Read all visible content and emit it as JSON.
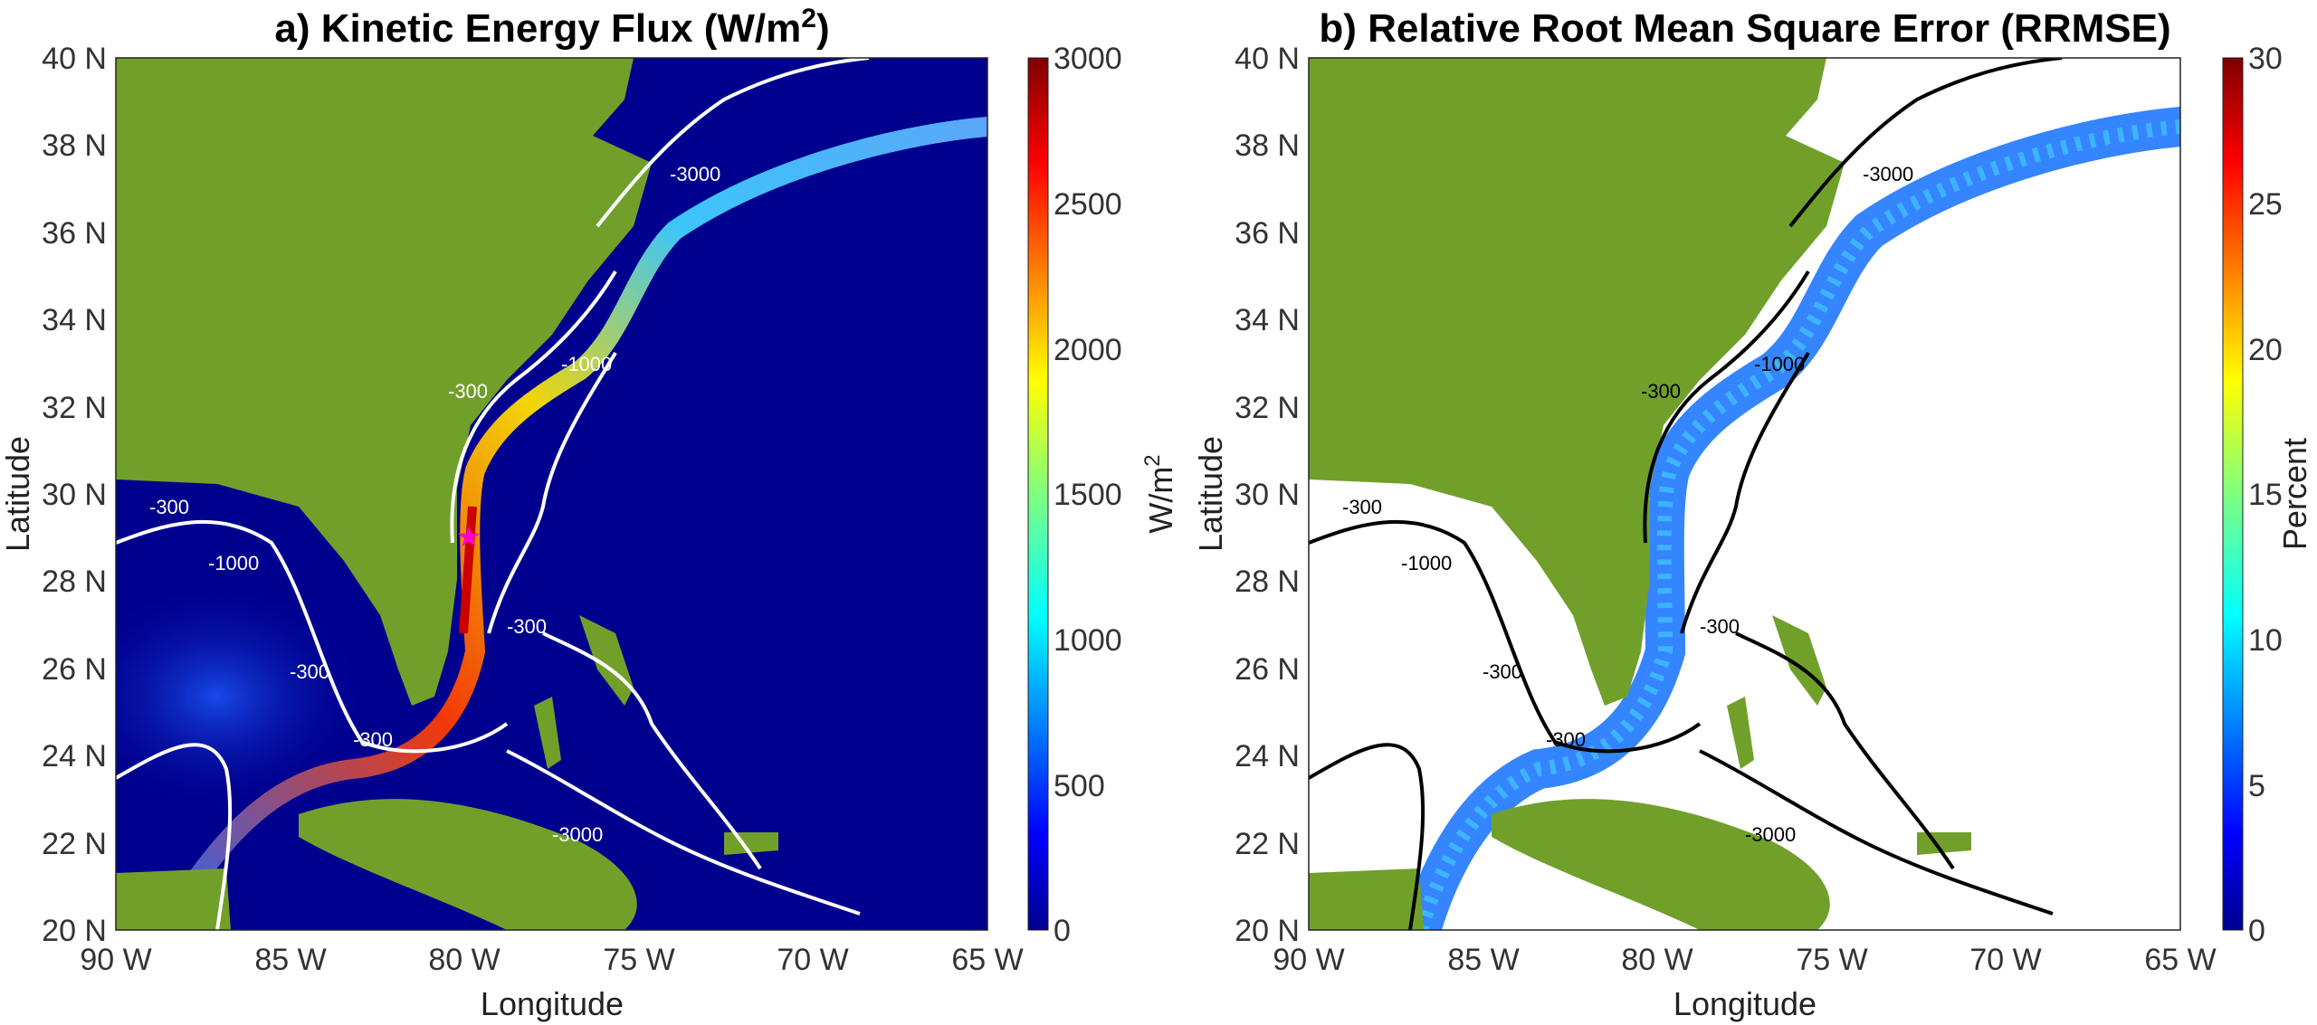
{
  "chart_data": [
    {
      "type": "heatmap",
      "title": "a) Kinetic Energy Flux (W/m",
      "title_superscript": "2",
      "title_suffix": ")",
      "xlabel": "Longitude",
      "ylabel": "Latitude",
      "xlim": [
        -90,
        -65
      ],
      "ylim": [
        20,
        40
      ],
      "x_ticks": [
        "90 W",
        "85 W",
        "80 W",
        "75 W",
        "70 W",
        "65 W"
      ],
      "y_ticks": [
        "20 N",
        "22 N",
        "24 N",
        "26 N",
        "28 N",
        "30 N",
        "32 N",
        "34 N",
        "36 N",
        "38 N",
        "40 N"
      ],
      "colorbar": {
        "label": "W/m",
        "label_superscript": "2",
        "range": [
          0,
          3000
        ],
        "ticks": [
          "0",
          "500",
          "1000",
          "1500",
          "2000",
          "2500",
          "3000"
        ],
        "colormap": "jet"
      },
      "background_color": "#00008f",
      "land_color": "#70a02a",
      "contour_color": "#ffffff",
      "contour_levels": [
        "-300",
        "-1000",
        "-3000"
      ],
      "marker": "star (magenta) near 29 N, 80 W"
    },
    {
      "type": "heatmap",
      "title": "b) Relative Root Mean Square Error (RRMSE)",
      "xlabel": "Longitude",
      "ylabel": "Latitude",
      "xlim": [
        -90,
        -65
      ],
      "ylim": [
        20,
        40
      ],
      "x_ticks": [
        "90 W",
        "85 W",
        "80 W",
        "75 W",
        "70 W",
        "65 W"
      ],
      "y_ticks": [
        "20 N",
        "22 N",
        "24 N",
        "26 N",
        "28 N",
        "30 N",
        "32 N",
        "34 N",
        "36 N",
        "38 N",
        "40 N"
      ],
      "colorbar": {
        "label": "Percent",
        "range": [
          0,
          30
        ],
        "ticks": [
          "0",
          "5",
          "10",
          "15",
          "20",
          "25",
          "30"
        ],
        "colormap": "jet"
      },
      "background_color": "#ffffff",
      "land_color": "#70a02a",
      "contour_color": "#000000",
      "contour_levels": [
        "-300",
        "-1000",
        "-3000"
      ]
    }
  ]
}
